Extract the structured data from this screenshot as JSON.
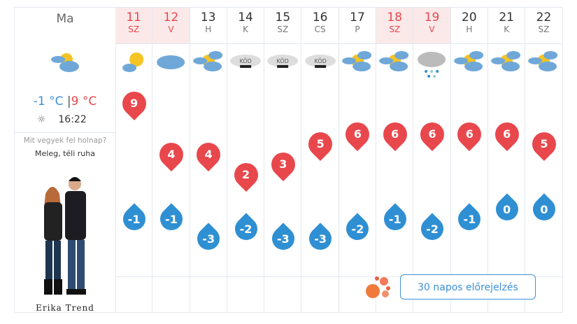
{
  "today": {
    "label": "Ma",
    "min": "-1 °C",
    "max": "9 °C",
    "sep": "|",
    "sunset_icon": "sunset-icon",
    "sunset": "16:22",
    "icon": "partly-cloudy-icon"
  },
  "outfit": {
    "question": "Mit vegyek fel holnap?",
    "answer": "Meleg, téli ruha",
    "brand": "Erika Trend"
  },
  "days": [
    {
      "day": "11",
      "wd": "SZ",
      "weekend": true,
      "icon": "sun-cloud",
      "max": 9,
      "min": -1
    },
    {
      "day": "12",
      "wd": "V",
      "weekend": true,
      "icon": "cloud",
      "max": 4,
      "min": -1
    },
    {
      "day": "13",
      "wd": "H",
      "weekend": false,
      "icon": "partly-cloudy",
      "max": 4,
      "min": -3
    },
    {
      "day": "14",
      "wd": "K",
      "weekend": false,
      "icon": "fog",
      "max": 2,
      "min": -2
    },
    {
      "day": "15",
      "wd": "SZ",
      "weekend": false,
      "icon": "fog",
      "max": 3,
      "min": -3
    },
    {
      "day": "16",
      "wd": "CS",
      "weekend": false,
      "icon": "fog",
      "max": 5,
      "min": -3
    },
    {
      "day": "17",
      "wd": "P",
      "weekend": false,
      "icon": "partly-cloudy",
      "max": 6,
      "min": -2
    },
    {
      "day": "18",
      "wd": "SZ",
      "weekend": true,
      "icon": "partly-cloudy",
      "max": 6,
      "min": -1
    },
    {
      "day": "19",
      "wd": "V",
      "weekend": true,
      "icon": "rain-snow",
      "max": 6,
      "min": -2
    },
    {
      "day": "20",
      "wd": "H",
      "weekend": false,
      "icon": "partly-cloudy",
      "max": 6,
      "min": -1
    },
    {
      "day": "21",
      "wd": "K",
      "weekend": false,
      "icon": "partly-cloudy",
      "max": 6,
      "min": 0
    },
    {
      "day": "22",
      "wd": "SZ",
      "weekend": false,
      "icon": "partly-cloudy",
      "max": 5,
      "min": 0
    }
  ],
  "fog_label": "KÖD",
  "forecast_button": "30 napos előrejelzés",
  "colors": {
    "max": "#e8474c",
    "min": "#2f8fd3",
    "weekend_bg": "#fbe9ea"
  }
}
